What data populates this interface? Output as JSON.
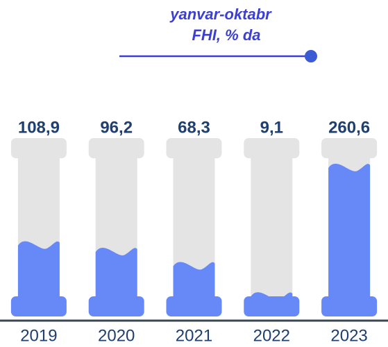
{
  "chart_data": {
    "type": "bar",
    "title": "yanvar-oktabr",
    "subtitle": "FHI, % da",
    "categories": [
      "2019",
      "2020",
      "2021",
      "2022",
      "2023"
    ],
    "values": [
      108.9,
      96.2,
      68.3,
      9.1,
      260.6
    ],
    "value_labels": [
      "108,9",
      "96,2",
      "68,3",
      "9,1",
      "260,6"
    ],
    "color": "#6689f7"
  }
}
